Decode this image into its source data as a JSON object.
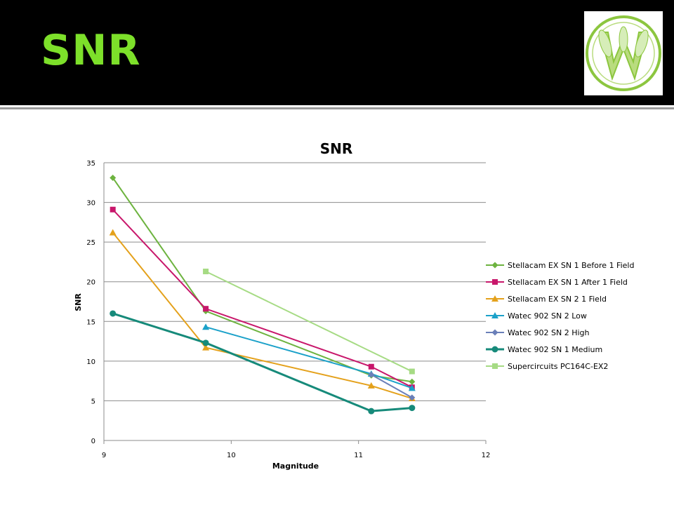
{
  "slide": {
    "title": "SNR"
  },
  "logo": {
    "name": "society-seal-logo",
    "colors": {
      "green": "#8cc63f",
      "light_green": "#b9dc7f"
    }
  },
  "chart_data": {
    "type": "line",
    "title": "SNR",
    "xlabel": "Magnitude",
    "ylabel": "SNR",
    "xlim": [
      9,
      12
    ],
    "ylim": [
      0,
      35
    ],
    "xticks": [
      9,
      10,
      11,
      12
    ],
    "yticks": [
      0,
      5,
      10,
      15,
      20,
      25,
      30,
      35
    ],
    "grid": "horizontal",
    "legend_position": "right",
    "series": [
      {
        "name": "Stellacam EX SN 1 Before 1 Field",
        "color": "#6db33f",
        "marker": "diamond",
        "width": 2,
        "points": [
          [
            9.07,
            33.1
          ],
          [
            9.8,
            16.3
          ],
          [
            11.1,
            8.2
          ],
          [
            11.42,
            7.4
          ]
        ]
      },
      {
        "name": "Stellacam EX SN 1 After 1 Field",
        "color": "#c8176b",
        "marker": "square",
        "width": 2,
        "points": [
          [
            9.07,
            29.1
          ],
          [
            9.8,
            16.6
          ],
          [
            11.1,
            9.3
          ],
          [
            11.42,
            6.7
          ]
        ]
      },
      {
        "name": "Stellacam EX SN 2 1 Field",
        "color": "#e4a11b",
        "marker": "triangle",
        "width": 2,
        "points": [
          [
            9.07,
            26.2
          ],
          [
            9.8,
            11.7
          ],
          [
            11.1,
            6.9
          ],
          [
            11.42,
            5.3
          ]
        ]
      },
      {
        "name": "Watec 902 SN 2 Low",
        "color": "#1ba1c9",
        "marker": "triangle",
        "width": 2,
        "points": [
          [
            9.8,
            14.3
          ],
          [
            11.1,
            8.4
          ],
          [
            11.42,
            6.6
          ]
        ]
      },
      {
        "name": "Watec 902 SN 2 High",
        "color": "#6a7fb8",
        "marker": "diamond",
        "width": 2,
        "points": [
          [
            11.1,
            8.3
          ],
          [
            11.42,
            5.4
          ]
        ]
      },
      {
        "name": "Watec 902 SN 1 Medium",
        "color": "#168a7a",
        "marker": "circle",
        "width": 3,
        "points": [
          [
            9.07,
            16.0
          ],
          [
            9.8,
            12.3
          ],
          [
            11.1,
            3.7
          ],
          [
            11.42,
            4.1
          ]
        ]
      },
      {
        "name": "Supercircuits PC164C-EX2",
        "color": "#a6db84",
        "marker": "square",
        "width": 2,
        "points": [
          [
            9.8,
            21.3
          ],
          [
            11.42,
            8.7
          ]
        ]
      }
    ]
  }
}
